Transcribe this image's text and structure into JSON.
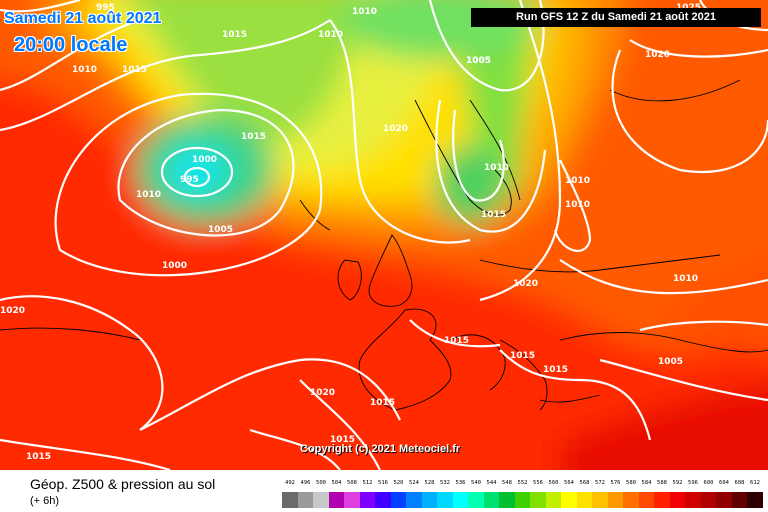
{
  "header": {
    "date": "Samedi 21 août 2021",
    "time": "20:00 locale",
    "run": "Run GFS 12 Z du Samedi 21 août 2021"
  },
  "copyright": "Copyright (c) 2021 Meteociel.fr",
  "footer": {
    "title": "Géop. Z500 & pression au sol",
    "subtitle": "(+ 6h)"
  },
  "pressure_labels": [
    "995",
    "1010",
    "1015",
    "1010",
    "1005",
    "1020",
    "1015",
    "1000",
    "995",
    "1010",
    "1005",
    "1000",
    "1010",
    "1015",
    "1005",
    "1020",
    "1010",
    "1010",
    "1010",
    "1015",
    "1010",
    "1020",
    "1015",
    "1015",
    "1015",
    "1005",
    "1020",
    "1015",
    "1015",
    "1015",
    "1020",
    "1025"
  ],
  "legend": {
    "values": [
      "492",
      "496",
      "500",
      "504",
      "508",
      "512",
      "516",
      "520",
      "524",
      "528",
      "532",
      "536",
      "540",
      "544",
      "548",
      "552",
      "556",
      "560",
      "564",
      "568",
      "572",
      "576",
      "580",
      "584",
      "588",
      "592",
      "596",
      "600",
      "604",
      "608",
      "612"
    ],
    "colors": [
      "#6a6a6a",
      "#9a9a9a",
      "#c8c8c8",
      "#b000b0",
      "#e040e0",
      "#8000ff",
      "#4000ff",
      "#0040ff",
      "#0080ff",
      "#00b0ff",
      "#00d8ff",
      "#00ffff",
      "#00ffb0",
      "#00e070",
      "#00c030",
      "#40d000",
      "#80e000",
      "#c0f000",
      "#ffff00",
      "#ffe000",
      "#ffc000",
      "#ff9a00",
      "#ff7000",
      "#ff4800",
      "#ff2000",
      "#f00000",
      "#d00000",
      "#b00000",
      "#900000",
      "#600000",
      "#300000"
    ]
  },
  "colors": {
    "date_blue": "#0078ff",
    "isobar": "#ffffff",
    "coast": "#000000"
  }
}
